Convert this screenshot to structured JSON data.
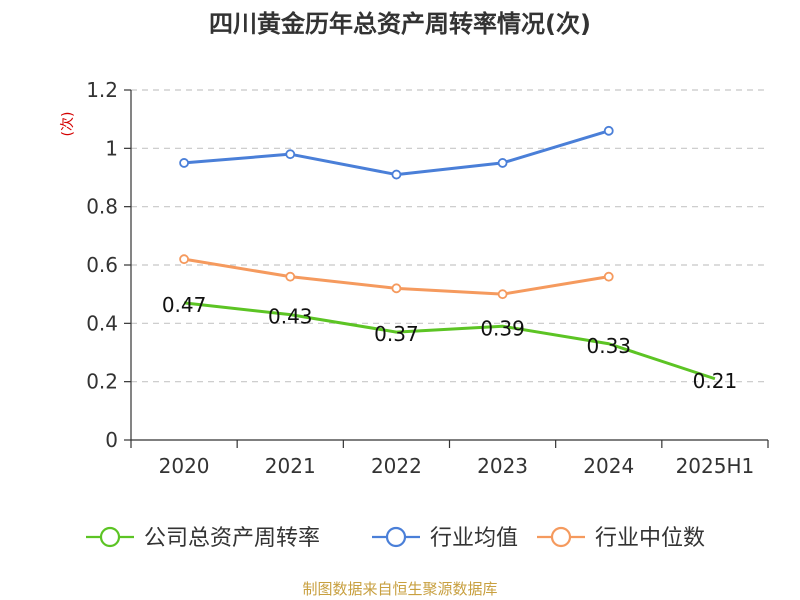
{
  "chart_data": {
    "type": "line",
    "title": "四川黄金历年总资产周转率情况(次)",
    "ylabel": "(次)",
    "xlabel": "",
    "categories": [
      "2020",
      "2021",
      "2022",
      "2023",
      "2024",
      "2025H1"
    ],
    "ylim": [
      0,
      1.2
    ],
    "yticks": [
      0,
      0.2,
      0.4,
      0.6,
      0.8,
      1,
      1.2
    ],
    "ytick_labels": [
      "0",
      "0.2",
      "0.4",
      "0.6",
      "0.8",
      "1",
      "1.2"
    ],
    "grid": true,
    "legend_position": "bottom",
    "series": [
      {
        "name": "公司总资产周转率",
        "color": "#5cc424",
        "values": [
          0.47,
          0.43,
          0.37,
          0.39,
          0.33,
          0.21
        ],
        "data_labels": [
          "0.47",
          "0.43",
          "0.37",
          "0.39",
          "0.33",
          "0.21"
        ]
      },
      {
        "name": "行业均值",
        "color": "#4a7fd8",
        "values": [
          0.95,
          0.98,
          0.91,
          0.95,
          1.06,
          null
        ]
      },
      {
        "name": "行业中位数",
        "color": "#f59a5e",
        "values": [
          0.62,
          0.56,
          0.52,
          0.5,
          0.56,
          null
        ]
      }
    ],
    "source": "制图数据来自恒生聚源数据库"
  }
}
